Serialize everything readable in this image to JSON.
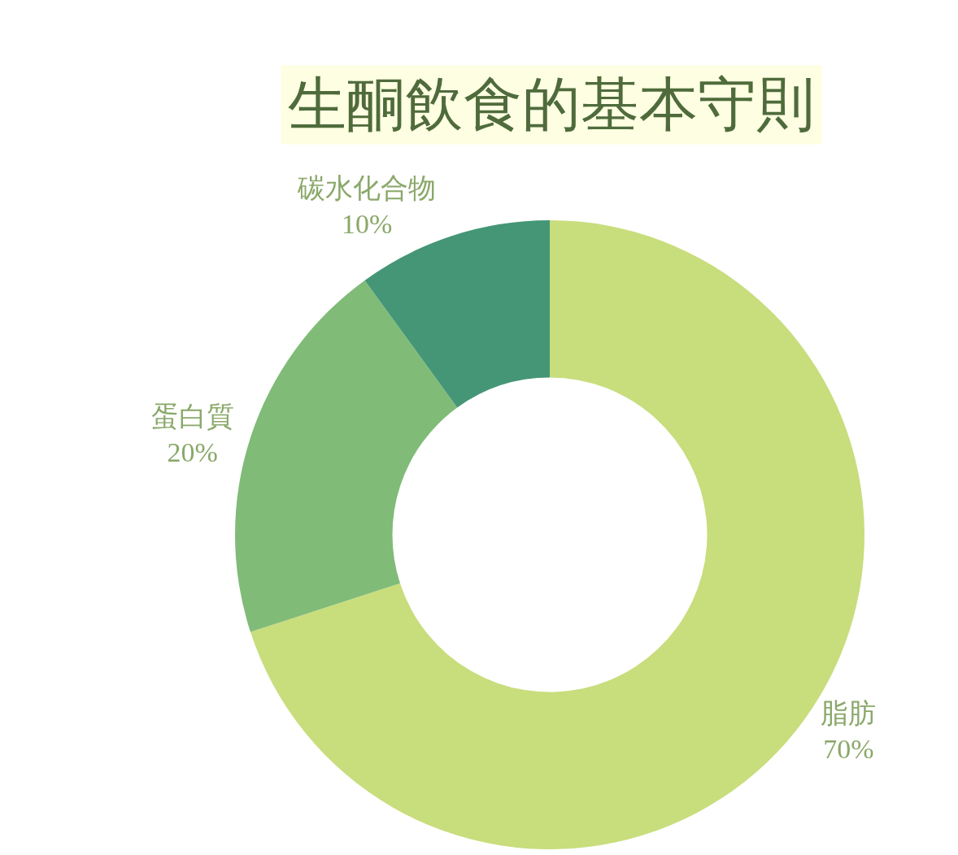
{
  "chart_data": {
    "type": "donut",
    "title": "生酮飲食的基本守則",
    "categories": [
      "脂肪",
      "蛋白質",
      "碳水化合物"
    ],
    "values": [
      70,
      20,
      10
    ],
    "colors": [
      "#c8dd7c",
      "#80bb78",
      "#449676"
    ],
    "value_labels": [
      "70%",
      "20%",
      "10%"
    ],
    "legend": false
  }
}
